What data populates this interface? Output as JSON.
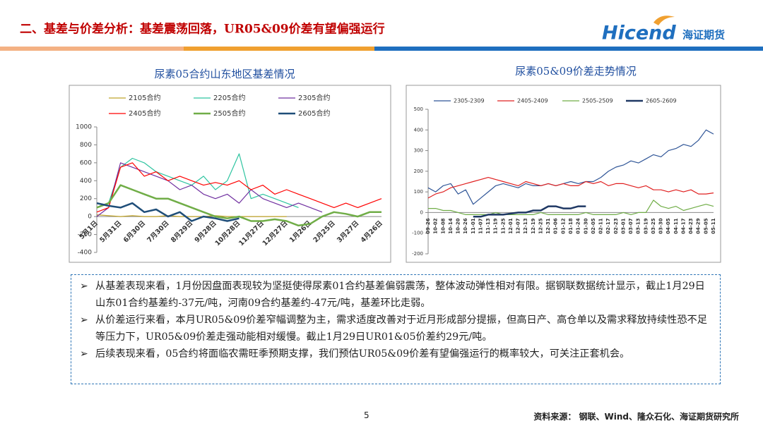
{
  "header": {
    "title": "二、基差与价差分析：基差震荡回落，UR05&09价差有望偏强运行",
    "logo_en": "Hicend",
    "logo_cn": "海证期货"
  },
  "chart_data": [
    {
      "type": "line",
      "title": "尿素05合约山东地区基差情况",
      "categories": [
        "5月1日",
        null,
        "5月31日",
        null,
        "6月30日",
        null,
        "7月30日",
        null,
        "8月29日",
        null,
        "9月28日",
        null,
        "10月28日",
        null,
        "11月27日",
        null,
        "12月27日",
        null,
        "1月26日",
        null,
        "2月25日",
        null,
        "3月27日",
        null,
        "4月26日"
      ],
      "ylim": [
        -400,
        1000
      ],
      "yticks": [
        -400,
        -200,
        0,
        200,
        400,
        600,
        800,
        1000
      ],
      "series": [
        {
          "name": "2105合约",
          "color": "#bfa32a",
          "line_width": 1.2,
          "values": [
            20,
            10,
            0,
            10,
            0,
            0,
            10,
            0,
            0,
            0,
            10,
            0,
            0,
            0,
            0,
            0,
            0,
            null,
            null,
            null,
            null,
            null,
            null,
            null,
            null
          ]
        },
        {
          "name": "2205合约",
          "color": "#2ec4a0",
          "line_width": 1.2,
          "values": [
            100,
            150,
            550,
            650,
            600,
            500,
            450,
            400,
            350,
            450,
            300,
            400,
            700,
            200,
            250,
            200,
            150,
            100,
            null,
            null,
            null,
            null,
            null,
            null,
            null
          ]
        },
        {
          "name": "2305合约",
          "color": "#7030a0",
          "line_width": 1.2,
          "values": [
            0,
            100,
            600,
            550,
            500,
            450,
            400,
            300,
            350,
            250,
            200,
            250,
            150,
            300,
            200,
            150,
            100,
            150,
            100,
            50,
            null,
            null,
            null,
            null,
            null
          ]
        },
        {
          "name": "2405合约",
          "color": "#ff0000",
          "line_width": 1.2,
          "values": [
            50,
            100,
            550,
            600,
            450,
            500,
            400,
            450,
            400,
            350,
            380,
            350,
            400,
            300,
            350,
            250,
            300,
            250,
            200,
            150,
            100,
            150,
            100,
            150,
            200
          ]
        },
        {
          "name": "2505合约",
          "color": "#70ad47",
          "line_width": 2.5,
          "values": [
            100,
            150,
            350,
            300,
            250,
            200,
            200,
            150,
            100,
            50,
            0,
            -20,
            0,
            -50,
            -50,
            -30,
            -50,
            -100,
            -80,
            0,
            50,
            30,
            0,
            50,
            50
          ]
        },
        {
          "name": "2605合约",
          "color": "#1f4e79",
          "line_width": 2.5,
          "values": [
            150,
            120,
            100,
            150,
            50,
            80,
            0,
            50,
            -50,
            0,
            -20,
            -50,
            -20,
            null,
            null,
            null,
            null,
            null,
            null,
            null,
            null,
            null,
            null,
            null,
            null
          ]
        }
      ]
    },
    {
      "type": "line",
      "title": "尿素05&09价差走势情况",
      "categories": [
        "09-26",
        "10-02",
        "10-08",
        "10-14",
        "10-20",
        "10-26",
        "11-01",
        "11-07",
        "11-13",
        "11-19",
        "11-25",
        "12-01",
        "12-07",
        "12-13",
        "12-19",
        "12-25",
        "12-31",
        "01-06",
        "01-12",
        "01-18",
        "01-24",
        "01-30",
        "02-05",
        "02-11",
        "02-17",
        "02-23",
        "03-01",
        "03-07",
        "03-13",
        "03-19",
        "03-25",
        "03-30",
        "04-05",
        "04-11",
        "04-17",
        "04-23",
        "04-29",
        "05-05",
        "05-11"
      ],
      "ylim": [
        -200,
        500
      ],
      "yticks": [
        -200,
        -100,
        0,
        100,
        200,
        300,
        400,
        500
      ],
      "series": [
        {
          "name": "2305-2309",
          "color": "#2f5597",
          "line_width": 1.2,
          "values": [
            120,
            100,
            130,
            140,
            90,
            110,
            40,
            70,
            100,
            130,
            140,
            130,
            120,
            140,
            130,
            130,
            140,
            130,
            140,
            150,
            140,
            150,
            150,
            170,
            200,
            220,
            230,
            250,
            240,
            260,
            280,
            270,
            300,
            310,
            330,
            320,
            350,
            400,
            380
          ]
        },
        {
          "name": "2405-2409",
          "color": "#e02020",
          "line_width": 1.2,
          "values": [
            70,
            90,
            100,
            120,
            130,
            140,
            150,
            160,
            170,
            160,
            150,
            140,
            130,
            150,
            140,
            130,
            140,
            130,
            140,
            130,
            130,
            150,
            140,
            150,
            130,
            140,
            140,
            130,
            120,
            130,
            110,
            110,
            100,
            110,
            100,
            110,
            90,
            90,
            95
          ]
        },
        {
          "name": "2505-2509",
          "color": "#70ad47",
          "line_width": 1.2,
          "values": [
            20,
            20,
            10,
            10,
            0,
            -10,
            -10,
            -10,
            -10,
            0,
            -10,
            -10,
            -10,
            -10,
            -10,
            0,
            -10,
            -10,
            -10,
            -10,
            -10,
            0,
            -10,
            -10,
            -10,
            -10,
            0,
            -10,
            0,
            0,
            60,
            30,
            20,
            30,
            10,
            20,
            30,
            40,
            30
          ]
        },
        {
          "name": "2605-2609",
          "color": "#1f3864",
          "line_width": 2.5,
          "values": [
            null,
            null,
            null,
            null,
            null,
            null,
            -20,
            -20,
            -10,
            -10,
            -10,
            -5,
            0,
            0,
            10,
            10,
            30,
            30,
            20,
            20,
            30,
            30,
            null,
            null,
            null,
            null,
            null,
            null,
            null,
            null,
            null,
            null,
            null,
            null,
            null,
            null,
            null,
            null,
            null
          ]
        }
      ]
    }
  ],
  "bullets": [
    "从基差表现来看，1月份因盘面表现较为坚挺使得尿素01合约基差偏弱震荡，整体波动弹性相对有限。据钢联数据统计显示，截止1月29日山东01合约基差约-37元/吨，河南09合约基差约-47元/吨，基差环比走弱。",
    "从价差运行来看，本月UR05&09价差窄幅调整为主，需求适度改善对于近月形成部分提振，但高日产、高仓单以及需求释放持续性恐不足等压力下，UR05&09价差走强动能相对缓慢。截止1月29日UR01&05价差约29元/吨。",
    "后续表现来看，05合约将面临农需旺季预期支撑，我们预估UR05&09价差有望偏强运行的概率较大，可关注正套机会。"
  ],
  "page_number": 5,
  "source": "资料来源：  钢联、Wind、隆众石化、海证期货研究所"
}
